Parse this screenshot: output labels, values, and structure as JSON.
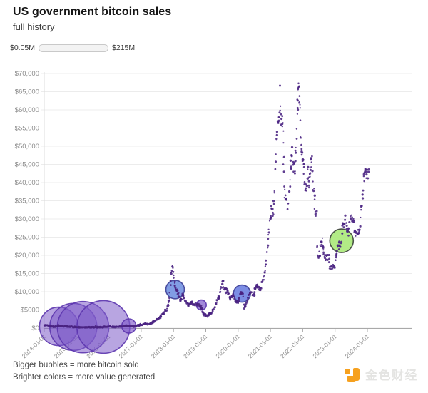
{
  "header": {
    "title": "US government bitcoin sales",
    "subtitle": "full history"
  },
  "legend": {
    "min_label": "$0.05M",
    "max_label": "$215M",
    "gradient_stops": [
      "#6b41cc",
      "#3f63de",
      "#2a93cf",
      "#2bcf74",
      "#43e64f"
    ]
  },
  "footer": {
    "note_bubbles": "Bigger bubbles = more bitcoin sold",
    "note_colors": "Brighter colors = more value generated"
  },
  "watermark": {
    "text": "金色财经",
    "icon_color": "#f6a11f",
    "text_color": "#e4e4e2"
  },
  "chart_data": {
    "type": "scatter",
    "title": "US government bitcoin sales",
    "xlabel": "",
    "ylabel": "",
    "grid": true,
    "ylim": [
      0,
      70000
    ],
    "xlim_years": [
      2014,
      2025.4
    ],
    "y_tick_values": [
      0,
      5000,
      10000,
      15000,
      20000,
      25000,
      30000,
      35000,
      40000,
      45000,
      50000,
      55000,
      60000,
      65000,
      70000
    ],
    "y_tick_labels": [
      "$0",
      "$5000",
      "$10,000",
      "$15,000",
      "$20,000",
      "$25,000",
      "$30,000",
      "$35,000",
      "$40,000",
      "$45,000",
      "$50,000",
      "$55,000",
      "$60,000",
      "$65,000",
      "$70,000"
    ],
    "x_tick_years": [
      2014,
      2015,
      2016,
      2017,
      2018,
      2019,
      2020,
      2021,
      2022,
      2023,
      2024
    ],
    "x_tick_labels": [
      "2014-01-01",
      "2015-01-01",
      "2016-01-01",
      "2017-01-01",
      "2018-01-01",
      "2019-01-01",
      "2020-01-01",
      "2021-01-01",
      "2022-01-01",
      "2023-01-01",
      "2024-01-01"
    ],
    "dot_color": "#4a2382",
    "price_series": [
      [
        2014.0,
        770
      ],
      [
        2014.08,
        830
      ],
      [
        2014.17,
        600
      ],
      [
        2014.25,
        450
      ],
      [
        2014.37,
        445
      ],
      [
        2014.45,
        590
      ],
      [
        2014.54,
        630
      ],
      [
        2014.62,
        580
      ],
      [
        2014.71,
        480
      ],
      [
        2014.79,
        380
      ],
      [
        2014.87,
        355
      ],
      [
        2014.96,
        320
      ],
      [
        2015.04,
        230
      ],
      [
        2015.12,
        245
      ],
      [
        2015.21,
        255
      ],
      [
        2015.29,
        240
      ],
      [
        2015.37,
        237
      ],
      [
        2015.46,
        232
      ],
      [
        2015.54,
        265
      ],
      [
        2015.62,
        280
      ],
      [
        2015.71,
        232
      ],
      [
        2015.79,
        240
      ],
      [
        2015.87,
        330
      ],
      [
        2015.96,
        420
      ],
      [
        2016.04,
        385
      ],
      [
        2016.12,
        375
      ],
      [
        2016.21,
        415
      ],
      [
        2016.29,
        425
      ],
      [
        2016.37,
        455
      ],
      [
        2016.46,
        575
      ],
      [
        2016.54,
        660
      ],
      [
        2016.62,
        605
      ],
      [
        2016.71,
        575
      ],
      [
        2016.79,
        615
      ],
      [
        2016.87,
        710
      ],
      [
        2016.96,
        900
      ],
      [
        2017.04,
        1000
      ],
      [
        2017.12,
        1150
      ],
      [
        2017.21,
        1180
      ],
      [
        2017.29,
        1300
      ],
      [
        2017.37,
        1700
      ],
      [
        2017.46,
        2300
      ],
      [
        2017.54,
        2600
      ],
      [
        2017.62,
        3400
      ],
      [
        2017.71,
        4400
      ],
      [
        2017.79,
        5200
      ],
      [
        2017.83,
        6500
      ],
      [
        2017.87,
        8000
      ],
      [
        2017.92,
        13000
      ],
      [
        2017.96,
        17500
      ],
      [
        2018.0,
        15000
      ],
      [
        2018.04,
        12000
      ],
      [
        2018.08,
        10600
      ],
      [
        2018.13,
        10300
      ],
      [
        2018.17,
        8500
      ],
      [
        2018.21,
        7800
      ],
      [
        2018.25,
        8200
      ],
      [
        2018.29,
        9300
      ],
      [
        2018.33,
        8400
      ],
      [
        2018.37,
        7500
      ],
      [
        2018.42,
        6600
      ],
      [
        2018.46,
        6300
      ],
      [
        2018.5,
        6700
      ],
      [
        2018.54,
        7200
      ],
      [
        2018.58,
        6900
      ],
      [
        2018.62,
        6400
      ],
      [
        2018.67,
        6600
      ],
      [
        2018.71,
        6500
      ],
      [
        2018.75,
        6400
      ],
      [
        2018.79,
        6350
      ],
      [
        2018.83,
        6300
      ],
      [
        2018.87,
        5500
      ],
      [
        2018.92,
        3900
      ],
      [
        2018.96,
        3600
      ],
      [
        2019.0,
        3700
      ],
      [
        2019.04,
        3500
      ],
      [
        2019.08,
        3700
      ],
      [
        2019.12,
        3900
      ],
      [
        2019.17,
        4100
      ],
      [
        2019.21,
        5100
      ],
      [
        2019.25,
        5300
      ],
      [
        2019.29,
        5800
      ],
      [
        2019.33,
        7200
      ],
      [
        2019.37,
        8200
      ],
      [
        2019.42,
        8700
      ],
      [
        2019.46,
        10800
      ],
      [
        2019.5,
        11500
      ],
      [
        2019.53,
        12800
      ],
      [
        2019.58,
        10400
      ],
      [
        2019.62,
        10500
      ],
      [
        2019.67,
        10200
      ],
      [
        2019.71,
        9500
      ],
      [
        2019.75,
        8200
      ],
      [
        2019.79,
        8300
      ],
      [
        2019.83,
        9200
      ],
      [
        2019.87,
        8500
      ],
      [
        2019.92,
        7300
      ],
      [
        2019.96,
        7200
      ],
      [
        2020.0,
        7200
      ],
      [
        2020.04,
        8400
      ],
      [
        2020.08,
        9500
      ],
      [
        2020.12,
        9900
      ],
      [
        2020.16,
        8900
      ],
      [
        2020.2,
        5300
      ],
      [
        2020.25,
        6700
      ],
      [
        2020.29,
        7500
      ],
      [
        2020.33,
        8800
      ],
      [
        2020.37,
        9600
      ],
      [
        2020.42,
        9500
      ],
      [
        2020.46,
        9200
      ],
      [
        2020.5,
        9150
      ],
      [
        2020.54,
        11200
      ],
      [
        2020.58,
        11700
      ],
      [
        2020.62,
        11400
      ],
      [
        2020.67,
        10500
      ],
      [
        2020.71,
        10800
      ],
      [
        2020.75,
        13000
      ],
      [
        2020.79,
        13800
      ],
      [
        2020.83,
        15500
      ],
      [
        2020.87,
        18500
      ],
      [
        2020.92,
        23000
      ],
      [
        2020.96,
        27000
      ],
      [
        2021.0,
        29300
      ],
      [
        2021.04,
        34000
      ],
      [
        2021.08,
        32000
      ],
      [
        2021.12,
        38000
      ],
      [
        2021.16,
        46500
      ],
      [
        2021.2,
        52000
      ],
      [
        2021.24,
        57500
      ],
      [
        2021.28,
        59000
      ],
      [
        2021.31,
        63200
      ],
      [
        2021.34,
        56000
      ],
      [
        2021.38,
        57500
      ],
      [
        2021.41,
        46000
      ],
      [
        2021.44,
        37000
      ],
      [
        2021.48,
        35500
      ],
      [
        2021.52,
        33000
      ],
      [
        2021.56,
        34500
      ],
      [
        2021.6,
        39500
      ],
      [
        2021.64,
        45500
      ],
      [
        2021.68,
        48800
      ],
      [
        2021.71,
        44500
      ],
      [
        2021.75,
        43800
      ],
      [
        2021.78,
        48000
      ],
      [
        2021.81,
        55000
      ],
      [
        2021.84,
        61500
      ],
      [
        2021.86,
        64500
      ],
      [
        2021.88,
        67500
      ],
      [
        2021.9,
        64000
      ],
      [
        2021.93,
        57500
      ],
      [
        2021.96,
        49000
      ],
      [
        2022.0,
        47000
      ],
      [
        2022.04,
        43500
      ],
      [
        2022.08,
        38500
      ],
      [
        2022.12,
        39500
      ],
      [
        2022.16,
        44000
      ],
      [
        2022.2,
        39500
      ],
      [
        2022.24,
        42500
      ],
      [
        2022.28,
        46000
      ],
      [
        2022.31,
        39800
      ],
      [
        2022.35,
        38500
      ],
      [
        2022.38,
        31500
      ],
      [
        2022.42,
        29800
      ],
      [
        2022.45,
        22000
      ],
      [
        2022.48,
        19200
      ],
      [
        2022.52,
        20500
      ],
      [
        2022.56,
        23200
      ],
      [
        2022.6,
        24100
      ],
      [
        2022.64,
        21500
      ],
      [
        2022.68,
        19800
      ],
      [
        2022.72,
        19200
      ],
      [
        2022.76,
        19500
      ],
      [
        2022.8,
        20400
      ],
      [
        2022.84,
        16600
      ],
      [
        2022.88,
        16800
      ],
      [
        2022.92,
        17100
      ],
      [
        2022.96,
        16700
      ],
      [
        2023.0,
        16600
      ],
      [
        2023.04,
        19900
      ],
      [
        2023.08,
        23100
      ],
      [
        2023.12,
        23400
      ],
      [
        2023.16,
        22200
      ],
      [
        2023.2,
        24500
      ],
      [
        2023.24,
        28200
      ],
      [
        2023.28,
        28500
      ],
      [
        2023.31,
        29900
      ],
      [
        2023.35,
        27500
      ],
      [
        2023.38,
        27200
      ],
      [
        2023.42,
        26300
      ],
      [
        2023.46,
        30200
      ],
      [
        2023.5,
        30500
      ],
      [
        2023.54,
        29300
      ],
      [
        2023.58,
        29200
      ],
      [
        2023.62,
        25900
      ],
      [
        2023.66,
        26050
      ],
      [
        2023.7,
        26500
      ],
      [
        2023.74,
        27000
      ],
      [
        2023.78,
        28400
      ],
      [
        2023.82,
        34600
      ],
      [
        2023.86,
        36800
      ],
      [
        2023.9,
        41500
      ],
      [
        2023.94,
        43800
      ],
      [
        2023.98,
        42600
      ],
      [
        2024.02,
        43200
      ],
      [
        2024.06,
        43800
      ]
    ],
    "sales_bubbles": [
      {
        "year": 2014.45,
        "price": 480,
        "radius": 27,
        "fill": "#7e5bc8",
        "stroke": "#5c35ae",
        "opacity": 0.55
      },
      {
        "year": 2014.9,
        "price": 330,
        "radius": 33,
        "fill": "#7e5bc8",
        "stroke": "#5c35ae",
        "opacity": 0.55
      },
      {
        "year": 2015.2,
        "price": 250,
        "radius": 36,
        "fill": "#7e5bc8",
        "stroke": "#5c35ae",
        "opacity": 0.55
      },
      {
        "year": 2015.83,
        "price": 320,
        "radius": 37,
        "fill": "#7e5bc8",
        "stroke": "#5c35ae",
        "opacity": 0.55
      },
      {
        "year": 2016.62,
        "price": 580,
        "radius": 10,
        "fill": "#8059ca",
        "stroke": "#5c35ae",
        "opacity": 0.65
      },
      {
        "year": 2018.05,
        "price": 10600,
        "radius": 13,
        "fill": "#6f90e0",
        "stroke": "#3d3f96",
        "opacity": 0.88
      },
      {
        "year": 2018.86,
        "price": 6350,
        "radius": 7,
        "fill": "#8463cd",
        "stroke": "#5c35ae",
        "opacity": 0.75
      },
      {
        "year": 2020.12,
        "price": 9500,
        "radius": 12,
        "fill": "#6a7de0",
        "stroke": "#3d3f96",
        "opacity": 0.88
      },
      {
        "year": 2023.2,
        "price": 24000,
        "radius": 16.5,
        "fill": "#abe97c",
        "stroke": "#3a4038",
        "opacity": 0.92
      }
    ]
  }
}
